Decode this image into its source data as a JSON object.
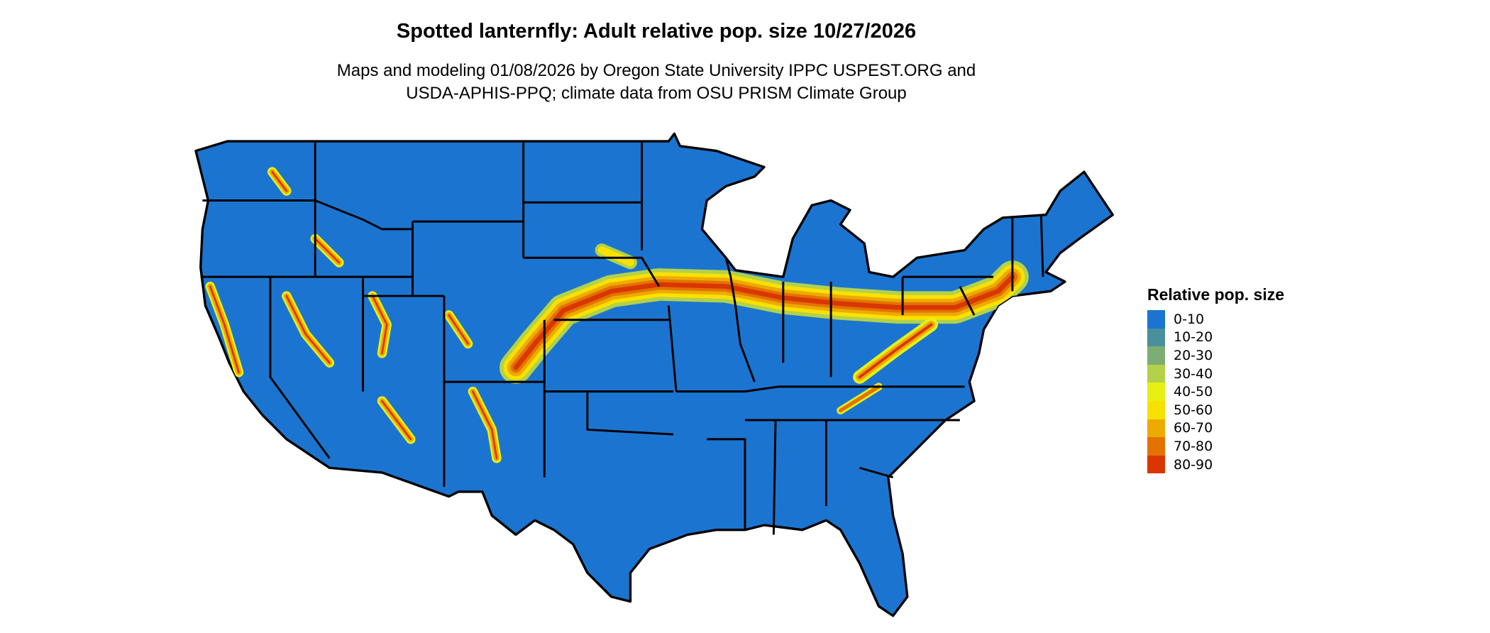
{
  "chart_data": {
    "type": "map",
    "title": "Spotted lanternfly: Adult relative pop. size 10/27/2026",
    "subtitle_lines": [
      "Maps and modeling 01/08/2026 by Oregon State University IPPC USPEST.ORG and",
      "USDA-APHIS-PPQ; climate data from OSU PRISM Climate Group"
    ],
    "region": "Contiguous United States",
    "legend": {
      "title": "Relative pop. size",
      "placement": "right",
      "bins": [
        {
          "label": "0-10",
          "color": "#1b75d0"
        },
        {
          "label": "10-20",
          "color": "#4a8f9c"
        },
        {
          "label": "20-30",
          "color": "#7cad72"
        },
        {
          "label": "30-40",
          "color": "#b3d14a"
        },
        {
          "label": "40-50",
          "color": "#e6f015"
        },
        {
          "label": "50-60",
          "color": "#f8e100"
        },
        {
          "label": "60-70",
          "color": "#eeaa00"
        },
        {
          "label": "70-80",
          "color": "#e37200"
        },
        {
          "label": "80-90",
          "color": "#d93600"
        }
      ]
    }
  }
}
